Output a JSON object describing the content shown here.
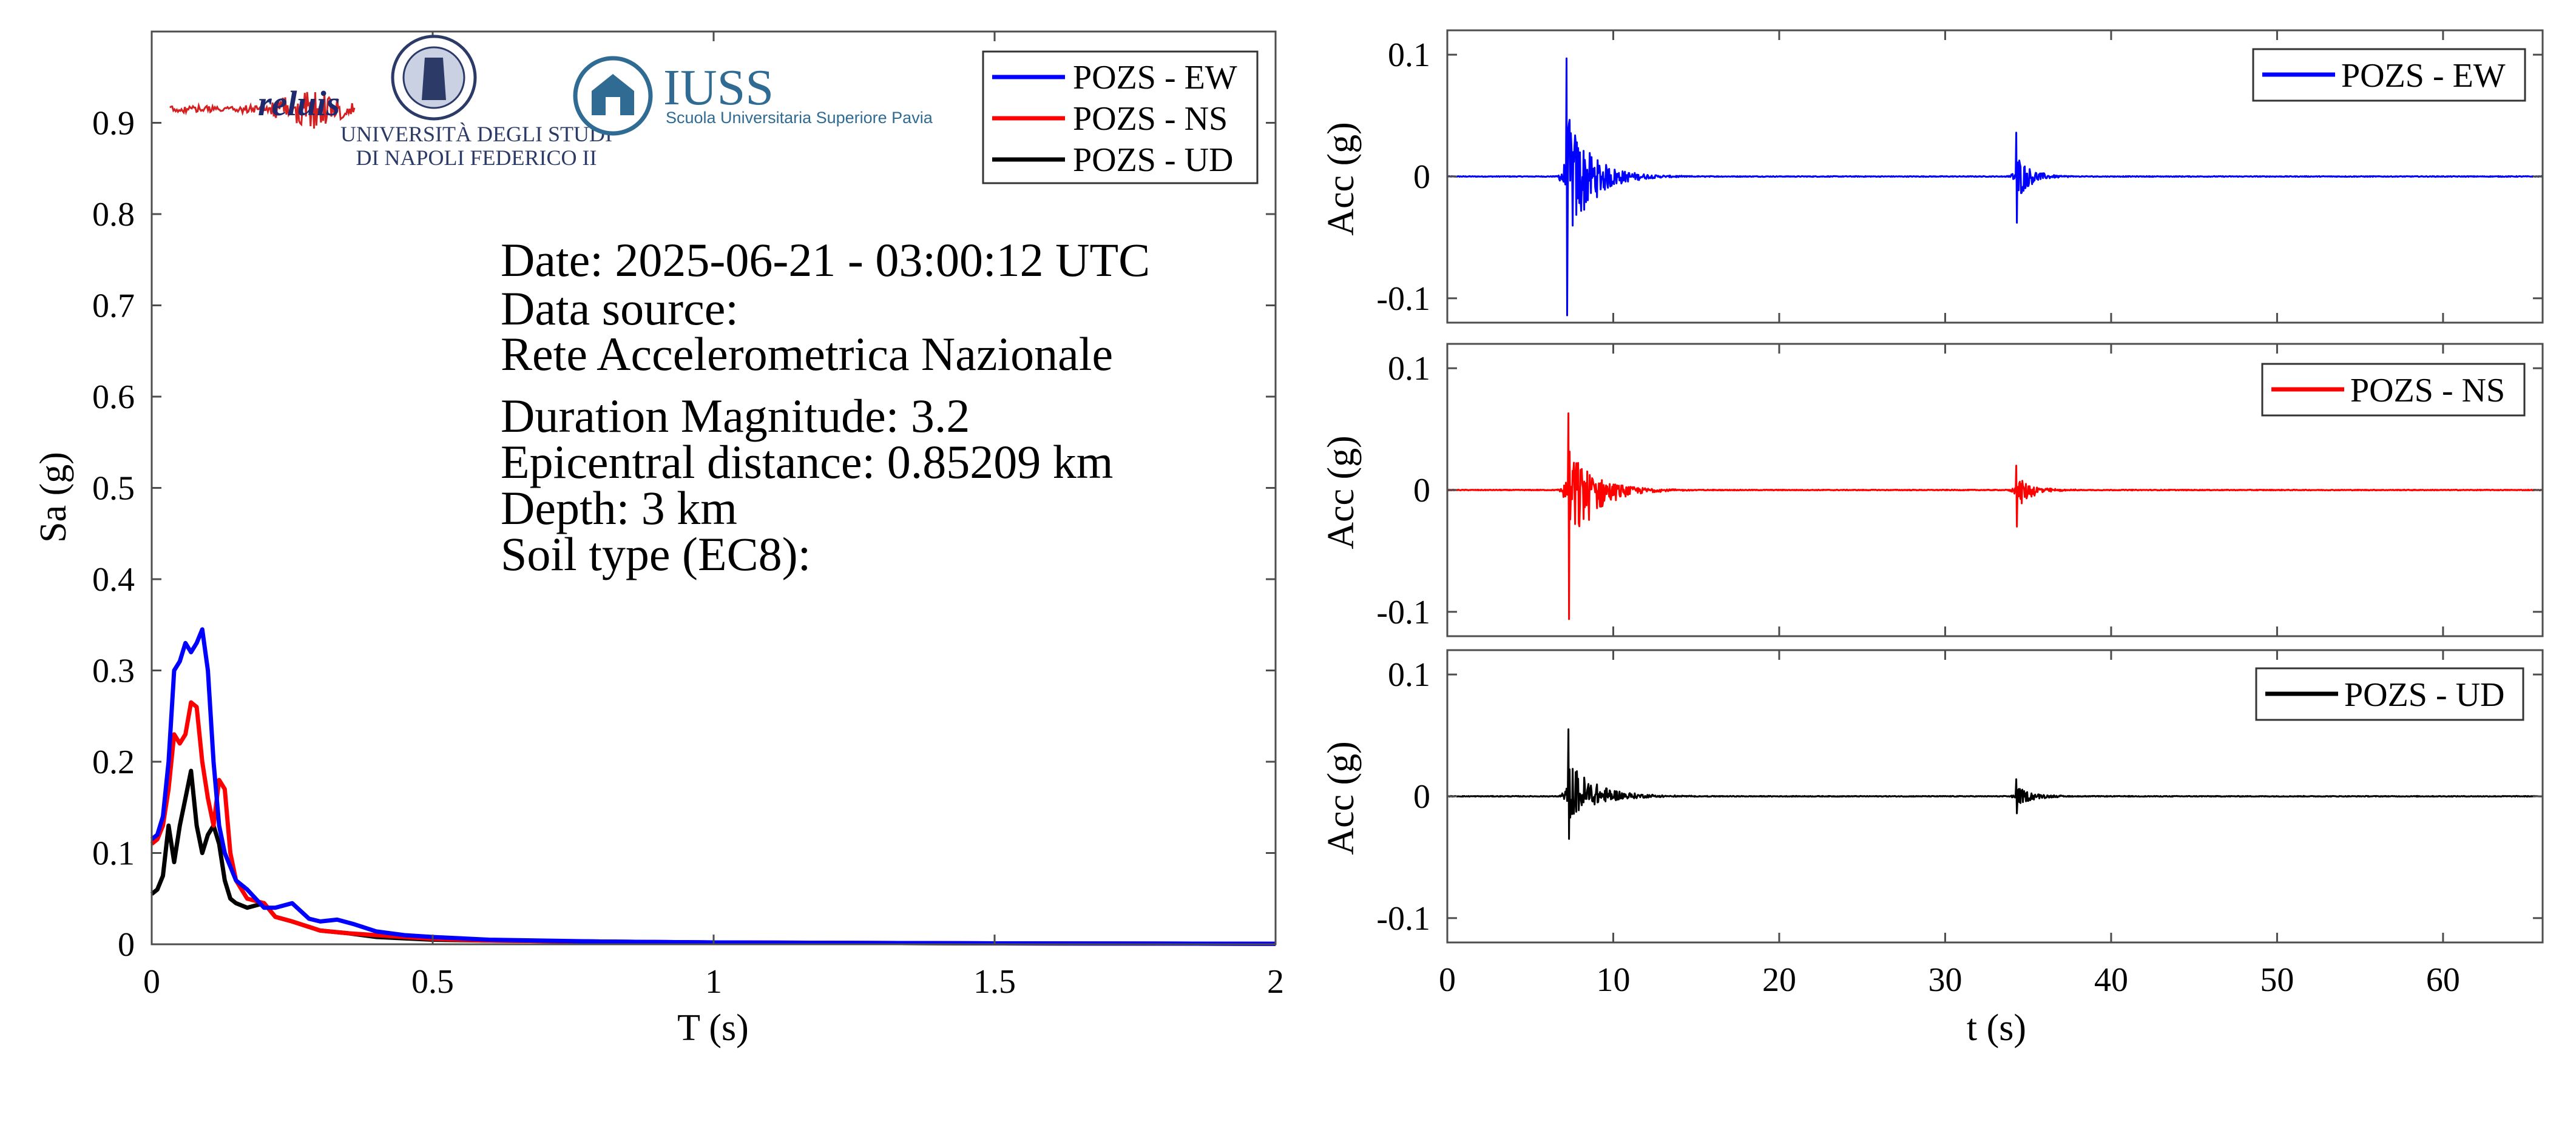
{
  "colors": {
    "EW": "#0000ff",
    "NS": "#ff0000",
    "UD": "#000000",
    "axis": "#4d4d4d"
  },
  "logos": [
    {
      "name": "reluis",
      "text": "reluis"
    },
    {
      "name": "unina",
      "lines": [
        "UNIVERSITÀ DEGLI STUDI",
        "DI NAPOLI FEDERICO II"
      ]
    },
    {
      "name": "iuss",
      "title": "IUSS",
      "subtitle": "Scuola Universitaria Superiore Pavia"
    }
  ],
  "info": {
    "date": "Date: 2025-06-21 - 03:00:12 UTC",
    "source_label": "Data source:",
    "source": "Rete Accelerometrica Nazionale",
    "magnitude": "Duration Magnitude: 3.2",
    "distance": "Epicentral distance: 0.85209 km",
    "depth": "Depth: 3 km",
    "soil": "Soil type (EC8):"
  },
  "chart_data": [
    {
      "type": "line",
      "xlabel": "T (s)",
      "ylabel": "Sa (g)",
      "xlim": [
        0,
        2
      ],
      "ylim": [
        0,
        1
      ],
      "xticks": [
        0,
        0.5,
        1,
        1.5,
        2
      ],
      "xtick_labels": [
        "0",
        "0.5",
        "1",
        "1.5",
        "2"
      ],
      "yticks": [
        0,
        0.1,
        0.2,
        0.3,
        0.4,
        0.5,
        0.6,
        0.7,
        0.8,
        0.9
      ],
      "ytick_labels": [
        "0",
        "0.1",
        "0.2",
        "0.3",
        "0.4",
        "0.5",
        "0.6",
        "0.7",
        "0.8",
        "0.9"
      ],
      "legend": "top-right",
      "series": [
        {
          "name": "POZS - EW",
          "color": "#0000ff",
          "x": [
            0,
            0.01,
            0.02,
            0.03,
            0.04,
            0.05,
            0.06,
            0.07,
            0.08,
            0.09,
            0.1,
            0.11,
            0.12,
            0.13,
            0.15,
            0.17,
            0.2,
            0.22,
            0.25,
            0.28,
            0.3,
            0.33,
            0.36,
            0.4,
            0.45,
            0.5,
            0.6,
            0.7,
            0.8,
            1.0,
            1.2,
            1.5,
            2.0
          ],
          "y": [
            0.115,
            0.12,
            0.14,
            0.2,
            0.3,
            0.31,
            0.33,
            0.32,
            0.33,
            0.345,
            0.3,
            0.2,
            0.13,
            0.1,
            0.07,
            0.06,
            0.04,
            0.04,
            0.045,
            0.028,
            0.025,
            0.027,
            0.022,
            0.014,
            0.01,
            0.008,
            0.005,
            0.004,
            0.003,
            0.002,
            0.0015,
            0.001,
            0.0005
          ]
        },
        {
          "name": "POZS - NS",
          "color": "#ff0000",
          "x": [
            0,
            0.01,
            0.02,
            0.03,
            0.04,
            0.05,
            0.06,
            0.07,
            0.08,
            0.09,
            0.1,
            0.11,
            0.12,
            0.13,
            0.14,
            0.15,
            0.17,
            0.2,
            0.22,
            0.25,
            0.3,
            0.35,
            0.4,
            0.5,
            0.6,
            0.8,
            1.0,
            1.5,
            2.0
          ],
          "y": [
            0.11,
            0.115,
            0.13,
            0.17,
            0.23,
            0.22,
            0.23,
            0.265,
            0.26,
            0.2,
            0.16,
            0.13,
            0.18,
            0.17,
            0.1,
            0.07,
            0.05,
            0.045,
            0.03,
            0.025,
            0.015,
            0.012,
            0.01,
            0.006,
            0.004,
            0.003,
            0.002,
            0.001,
            0.0005
          ]
        },
        {
          "name": "POZS - UD",
          "color": "#000000",
          "x": [
            0,
            0.01,
            0.02,
            0.03,
            0.04,
            0.05,
            0.06,
            0.07,
            0.08,
            0.09,
            0.1,
            0.11,
            0.12,
            0.13,
            0.14,
            0.15,
            0.17,
            0.2,
            0.22,
            0.25,
            0.3,
            0.35,
            0.4,
            0.5,
            0.6,
            0.8,
            1.0,
            1.5,
            2.0
          ],
          "y": [
            0.055,
            0.06,
            0.075,
            0.13,
            0.09,
            0.13,
            0.16,
            0.19,
            0.13,
            0.1,
            0.12,
            0.13,
            0.11,
            0.07,
            0.05,
            0.045,
            0.04,
            0.045,
            0.03,
            0.025,
            0.015,
            0.012,
            0.008,
            0.005,
            0.004,
            0.003,
            0.002,
            0.001,
            0.0005
          ]
        }
      ]
    },
    {
      "type": "line",
      "xlabel": "",
      "ylabel": "Acc (g)",
      "xlim": [
        0,
        66
      ],
      "ylim": [
        -0.12,
        0.12
      ],
      "yticks": [
        -0.1,
        0,
        0.1
      ],
      "ytick_labels": [
        "-0.1",
        "0",
        "0.1"
      ],
      "legend": "top-right",
      "series": [
        {
          "name": "POZS - EW",
          "color": "#0000ff",
          "events": [
            {
              "t": 7.2,
              "peak": 0.097,
              "trough": -0.114,
              "decay": 1.4
            },
            {
              "t": 34.3,
              "peak": 0.036,
              "trough": -0.038,
              "decay": 0.8
            }
          ]
        }
      ]
    },
    {
      "type": "line",
      "xlabel": "",
      "ylabel": "Acc (g)",
      "xlim": [
        0,
        66
      ],
      "ylim": [
        -0.12,
        0.12
      ],
      "yticks": [
        -0.1,
        0,
        0.1
      ],
      "ytick_labels": [
        "-0.1",
        "0",
        "0.1"
      ],
      "legend": "top-right",
      "series": [
        {
          "name": "POZS - NS",
          "color": "#ff0000",
          "events": [
            {
              "t": 7.3,
              "peak": 0.063,
              "trough": -0.106,
              "decay": 1.5
            },
            {
              "t": 34.3,
              "peak": 0.02,
              "trough": -0.03,
              "decay": 0.9
            }
          ]
        }
      ]
    },
    {
      "type": "line",
      "xlabel": "t (s)",
      "ylabel": "Acc (g)",
      "xlim": [
        0,
        66
      ],
      "ylim": [
        -0.12,
        0.12
      ],
      "xticks": [
        0,
        10,
        20,
        30,
        40,
        50,
        60
      ],
      "xtick_labels": [
        "0",
        "10",
        "20",
        "30",
        "40",
        "50",
        "60"
      ],
      "yticks": [
        -0.1,
        0,
        0.1
      ],
      "ytick_labels": [
        "-0.1",
        "0",
        "0.1"
      ],
      "legend": "top-right",
      "series": [
        {
          "name": "POZS - UD",
          "color": "#000000",
          "events": [
            {
              "t": 7.3,
              "peak": 0.055,
              "trough": -0.035,
              "decay": 1.6
            },
            {
              "t": 34.3,
              "peak": 0.014,
              "trough": -0.014,
              "decay": 1.0
            }
          ]
        }
      ]
    }
  ]
}
